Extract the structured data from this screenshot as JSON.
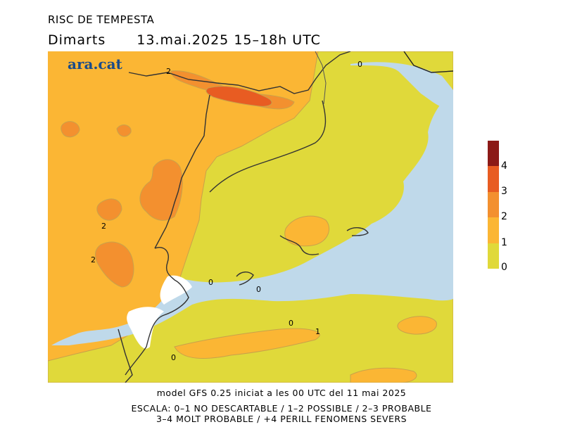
{
  "header": {
    "title": "RISC DE TEMPESTA",
    "day": "Dimarts",
    "date_time": "13.mai.2025 15–18h UTC"
  },
  "map": {
    "logo": "ara.cat",
    "contour_labels": [
      "2",
      "0",
      "2",
      "2",
      "0",
      "0",
      "0",
      "1",
      "0"
    ],
    "colors": {
      "sea": "#bfd9ea",
      "level_0_1": "#e0d93a",
      "level_1_2": "#fbb634",
      "level_2_3": "#f3902f",
      "level_3_4": "#e85c22",
      "level_4_plus": "#8c1a17"
    }
  },
  "legend": {
    "labels": [
      "4",
      "3",
      "2",
      "1",
      "0"
    ]
  },
  "footer": {
    "line1": "model GFS 0.25 iniciat a les 00 UTC del 11 mai 2025",
    "line2": "ESCALA: 0–1 NO DESCARTABLE / 1–2 POSSIBLE / 2–3 PROBABLE",
    "line3": "3–4 MOLT PROBABLE / +4 PERILL FENOMENS SEVERS"
  }
}
